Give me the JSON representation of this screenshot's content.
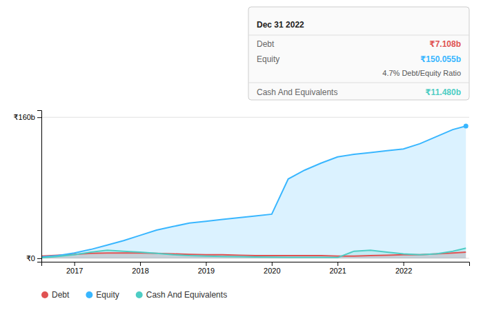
{
  "chart_data": {
    "type": "area",
    "x": [
      2016.5,
      2016.75,
      2017,
      2017.25,
      2017.5,
      2017.75,
      2018,
      2018.25,
      2018.5,
      2018.75,
      2019,
      2019.25,
      2019.5,
      2019.75,
      2020,
      2020.25,
      2020.5,
      2020.75,
      2021,
      2021.25,
      2021.5,
      2021.75,
      2022,
      2022.25,
      2022.5,
      2022.75,
      2022.95
    ],
    "series": [
      {
        "name": "Debt",
        "color": "#e05252",
        "values": [
          2.5,
          3.5,
          4.5,
          5.5,
          6,
          6,
          6,
          5.5,
          5,
          4.5,
          4,
          4,
          3.5,
          3,
          3,
          3,
          3,
          3,
          2.5,
          2.5,
          3,
          3.5,
          4,
          4,
          5,
          6,
          7
        ]
      },
      {
        "name": "Equity",
        "color": "#38b6ff",
        "values": [
          1.5,
          3,
          6,
          10,
          15,
          20,
          26,
          32,
          36,
          40,
          42,
          44,
          46,
          48,
          50,
          90,
          100,
          108,
          115,
          118,
          120,
          122,
          124,
          130,
          138,
          146,
          150
        ]
      },
      {
        "name": "Cash And Equivalents",
        "color": "#4ecdc4",
        "values": [
          0.5,
          2,
          4,
          7,
          9,
          8,
          7,
          5.5,
          4,
          3,
          2.5,
          2,
          1.8,
          1.5,
          1.2,
          1,
          1,
          1,
          0.8,
          8,
          9,
          7,
          5,
          4,
          5,
          8,
          11.5
        ]
      }
    ],
    "xlim": [
      2016.5,
      2023.0
    ],
    "xticks": [
      2017,
      2018,
      2019,
      2020,
      2021,
      2022
    ],
    "ylim": [
      -4,
      168
    ],
    "yticks": [
      {
        "value": 0,
        "label": "₹0"
      },
      {
        "value": 160,
        "label": "₹160b"
      }
    ],
    "grid": true,
    "legend": "bottom",
    "annotations": [
      {
        "text": "Dec 31 2022"
      },
      {
        "text": "Debt"
      },
      {
        "text": "₹7.108b"
      },
      {
        "text": "Equity"
      },
      {
        "text": "₹150.055b"
      },
      {
        "text": "4.7% Debt/Equity Ratio"
      },
      {
        "text": "Cash And Equivalents"
      },
      {
        "text": "₹11.480b"
      }
    ]
  }
}
